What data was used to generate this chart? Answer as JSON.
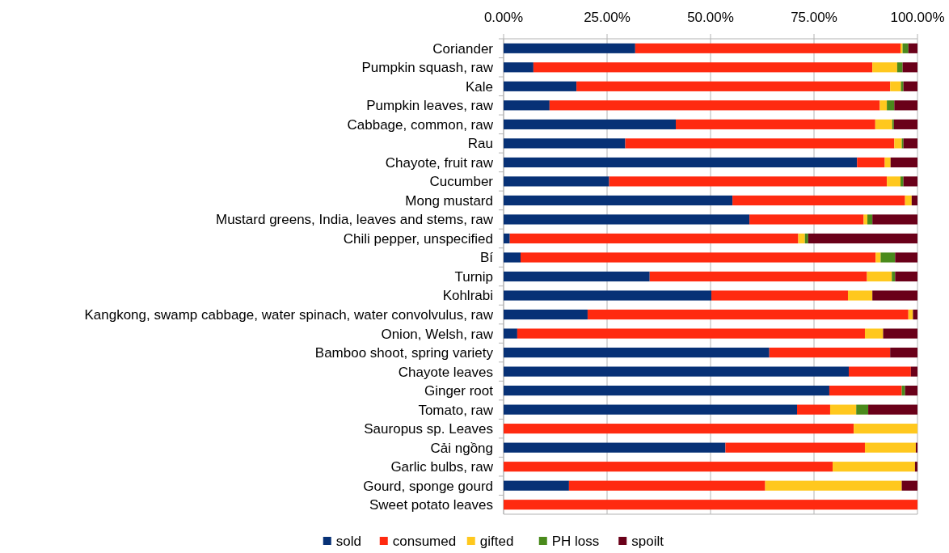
{
  "chart_data": {
    "type": "bar",
    "orientation": "horizontal",
    "stacked": true,
    "categories": [
      "Coriander",
      "Pumpkin squash, raw",
      "Kale",
      "Pumpkin leaves, raw",
      "Cabbage, common, raw",
      "Rau",
      "Chayote, fruit raw",
      "Cucumber",
      "Mong mustard",
      "Mustard greens, India, leaves and stems, raw",
      "Chili pepper, unspecified",
      "Bí",
      "Turnip",
      "Kohlrabi",
      "Kangkong, swamp cabbage, water spinach, water convolvulus, raw",
      "Onion, Welsh, raw",
      "Bamboo shoot, spring variety",
      "Chayote leaves",
      "Ginger root",
      "Tomato, raw",
      "Sauropus sp. Leaves",
      "Cải ngồng",
      "Garlic bulbs, raw",
      "Gourd, sponge gourd",
      "Sweet potato leaves"
    ],
    "series": [
      {
        "name": "sold",
        "color": "#073176",
        "values": [
          31.8,
          7.2,
          17.6,
          11.1,
          41.6,
          29.4,
          85.4,
          25.5,
          55.3,
          59.4,
          1.5,
          4.1,
          35.3,
          50.2,
          20.3,
          3.3,
          64.2,
          83.4,
          78.7,
          70.9,
          0,
          53.6,
          0,
          15.8,
          0
        ]
      },
      {
        "name": "consumed",
        "color": "#ff2a10",
        "values": [
          64.1,
          81.9,
          75.8,
          79.8,
          48.2,
          65.0,
          6.7,
          67.1,
          41.7,
          27.6,
          69.7,
          85.8,
          52.5,
          33.0,
          77.5,
          84.0,
          29.2,
          15.0,
          17.5,
          8.0,
          84.6,
          33.7,
          79.5,
          47.4,
          100
        ]
      },
      {
        "name": "gifted",
        "color": "#ffc81e",
        "values": [
          0.5,
          6.0,
          2.6,
          1.7,
          4.1,
          1.8,
          1.4,
          3.3,
          1.6,
          0.9,
          1.6,
          1.2,
          6.0,
          5.9,
          1.1,
          4.4,
          0,
          0,
          0,
          6.3,
          15.4,
          12.3,
          19.9,
          33.0,
          0
        ]
      },
      {
        "name": "PH loss",
        "color": "#4a8a1c",
        "values": [
          1.4,
          1.3,
          0.6,
          1.8,
          0.4,
          0.4,
          0,
          0.7,
          0,
          1.2,
          0.8,
          3.5,
          0.8,
          0,
          0,
          0,
          0,
          0,
          0.8,
          2.9,
          0,
          0,
          0,
          0,
          0
        ]
      },
      {
        "name": "spoilt",
        "color": "#6a0019",
        "values": [
          2.2,
          3.6,
          3.4,
          5.6,
          5.7,
          3.4,
          6.5,
          3.4,
          1.4,
          10.9,
          26.4,
          5.4,
          5.4,
          10.9,
          1.1,
          8.3,
          6.6,
          1.6,
          3.0,
          11.9,
          0,
          0.4,
          0.6,
          3.8,
          0
        ]
      }
    ],
    "xlim": [
      0,
      100
    ],
    "xticks": [
      {
        "value": 0,
        "label": "0.00%"
      },
      {
        "value": 25,
        "label": "25.00%"
      },
      {
        "value": 50,
        "label": "50.00%"
      },
      {
        "value": 75,
        "label": "75.00%"
      },
      {
        "value": 100,
        "label": "100.00%"
      }
    ],
    "grid": "x",
    "legend": "bottom"
  }
}
